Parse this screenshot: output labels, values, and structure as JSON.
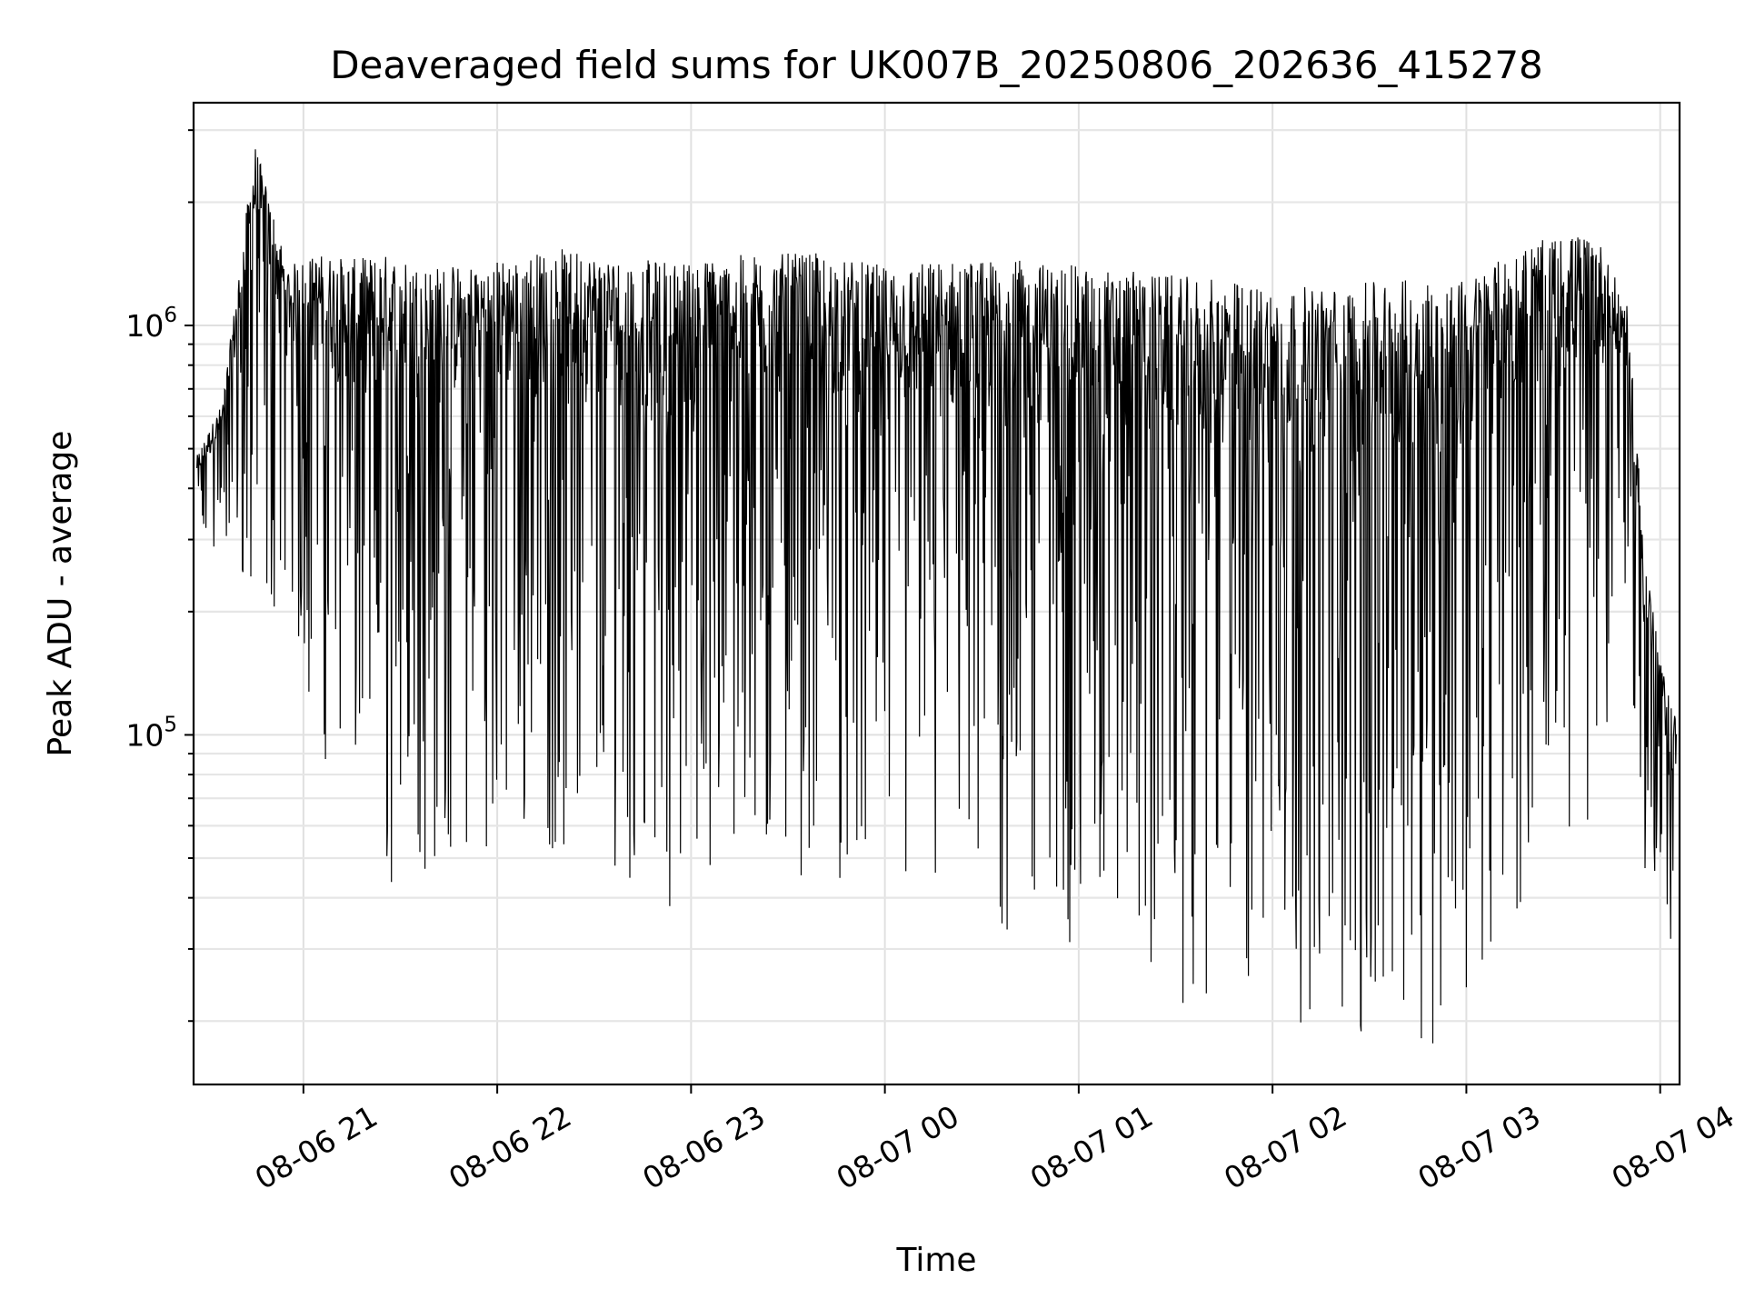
{
  "chart_data": {
    "type": "line",
    "title": "Deaveraged field sums for UK007B_20250806_202636_415278",
    "xlabel": "Time",
    "ylabel": "Peak ADU - average",
    "yscale": "log",
    "grid": true,
    "xlim": [
      "2025-08-06 20:26",
      "2025-08-07 04:06"
    ],
    "ylim": [
      14000,
      3500000
    ],
    "x_ticks": [
      "08-06 21",
      "08-06 22",
      "08-06 23",
      "08-07 00",
      "08-07 01",
      "08-07 02",
      "08-07 03",
      "08-07 04"
    ],
    "y_ticks": [
      {
        "base": "10",
        "exp": "5",
        "value": 100000
      },
      {
        "base": "10",
        "exp": "6",
        "value": 1000000
      }
    ],
    "series": [
      {
        "color": "#000000",
        "envelope": [
          {
            "x": "2025-08-06 20:27",
            "low": 280000,
            "high": 480000
          },
          {
            "x": "2025-08-06 20:35",
            "low": 260000,
            "high": 650000
          },
          {
            "x": "2025-08-06 20:45",
            "low": 180000,
            "high": 2800000
          },
          {
            "x": "2025-08-06 20:55",
            "low": 200000,
            "high": 1400000
          },
          {
            "x": "2025-08-06 21:05",
            "low": 90000,
            "high": 1500000
          },
          {
            "x": "2025-08-06 21:15",
            "low": 70000,
            "high": 1450000
          },
          {
            "x": "2025-08-06 21:25",
            "low": 40000,
            "high": 1500000
          },
          {
            "x": "2025-08-06 21:40",
            "low": 45000,
            "high": 1400000
          },
          {
            "x": "2025-08-06 22:00",
            "low": 55000,
            "high": 1450000
          },
          {
            "x": "2025-08-06 22:20",
            "low": 50000,
            "high": 1550000
          },
          {
            "x": "2025-08-06 22:40",
            "low": 45000,
            "high": 1450000
          },
          {
            "x": "2025-08-06 23:00",
            "low": 35000,
            "high": 1450000
          },
          {
            "x": "2025-08-06 23:20",
            "low": 45000,
            "high": 1500000
          },
          {
            "x": "2025-08-06 23:40",
            "low": 45000,
            "high": 1500000
          },
          {
            "x": "2025-08-07 00:00",
            "low": 40000,
            "high": 1400000
          },
          {
            "x": "2025-08-07 00:20",
            "low": 30000,
            "high": 1450000
          },
          {
            "x": "2025-08-07 00:40",
            "low": 28000,
            "high": 1450000
          },
          {
            "x": "2025-08-07 01:00",
            "low": 30000,
            "high": 1400000
          },
          {
            "x": "2025-08-07 01:20",
            "low": 25000,
            "high": 1350000
          },
          {
            "x": "2025-08-07 01:40",
            "low": 20000,
            "high": 1300000
          },
          {
            "x": "2025-08-07 02:00",
            "low": 22000,
            "high": 1250000
          },
          {
            "x": "2025-08-07 02:20",
            "low": 17000,
            "high": 1250000
          },
          {
            "x": "2025-08-07 02:40",
            "low": 17000,
            "high": 1300000
          },
          {
            "x": "2025-08-07 03:00",
            "low": 18000,
            "high": 1300000
          },
          {
            "x": "2025-08-07 03:20",
            "low": 45000,
            "high": 1600000
          },
          {
            "x": "2025-08-07 03:40",
            "low": 60000,
            "high": 1700000
          },
          {
            "x": "2025-08-07 03:50",
            "low": 250000,
            "high": 1100000
          },
          {
            "x": "2025-08-07 03:55",
            "low": 30000,
            "high": 300000
          },
          {
            "x": "2025-08-07 04:00",
            "low": 45000,
            "high": 150000
          },
          {
            "x": "2025-08-07 04:05",
            "low": 16000,
            "high": 110000
          }
        ]
      }
    ]
  }
}
